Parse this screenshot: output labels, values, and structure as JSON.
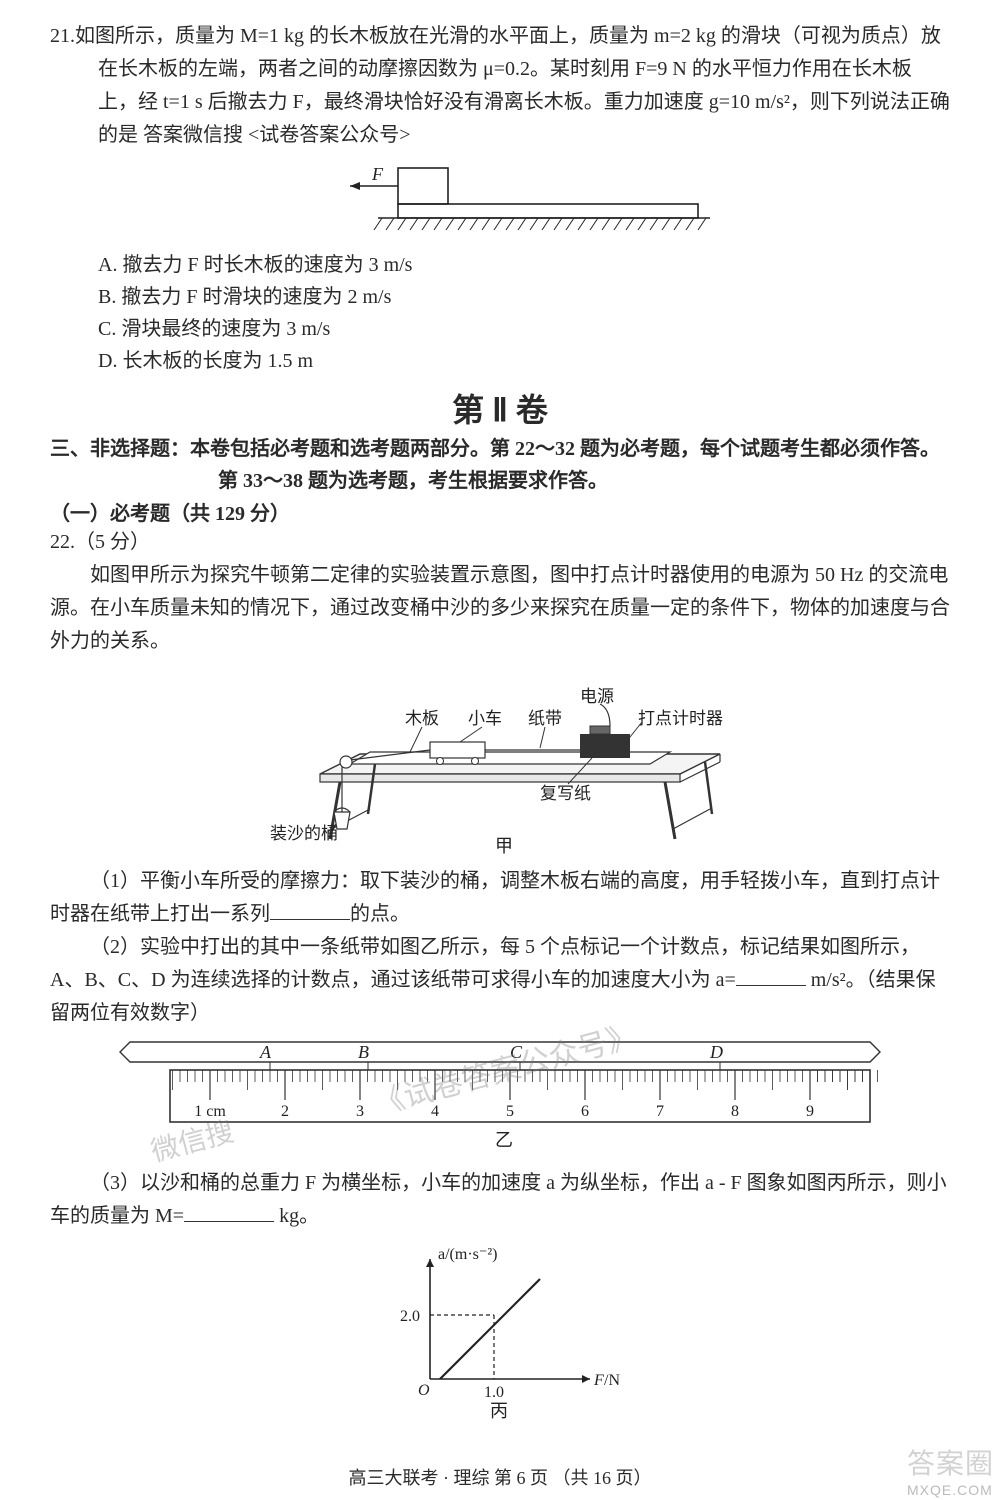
{
  "q21": {
    "num": "21.",
    "stem": "如图所示，质量为 M=1 kg 的长木板放在光滑的水平面上，质量为 m=2 kg 的滑块（可视为质点）放在长木板的左端，两者之间的动摩擦因数为 μ=0.2。某时刻用 F=9 N 的水平恒力作用在长木板上，经 t=1 s 后撤去力 F，最终滑块恰好没有滑离长木板。重力加速度 g=10 m/s²，则下列说法正确的是 答案微信搜 <试卷答案公众号>",
    "options": {
      "A": "A. 撤去力 F 时长木板的速度为 3 m/s",
      "B": "B. 撤去力 F 时滑块的速度为 2 m/s",
      "C": "C. 滑块最终的速度为 3 m/s",
      "D": "D. 长木板的长度为 1.5 m"
    },
    "diagram": {
      "force_label": "F",
      "block_w": 50,
      "block_h": 36,
      "board_w": 300,
      "board_h": 14,
      "ground_w": 340
    }
  },
  "part2": {
    "title": "第 Ⅱ 卷",
    "instr": "三、非选择题：本卷包括必考题和选考题两部分。第 22～32 题为必考题，每个试题考生都必须作答。第 33～38 题为选考题，考生根据要求作答。",
    "sub": "（一）必考题（共 129 分）"
  },
  "q22": {
    "head": "22.（5 分）",
    "p1": "如图甲所示为探究牛顿第二定律的实验装置示意图，图中打点计时器使用的电源为 50 Hz 的交流电源。在小车质量未知的情况下，通过改变桶中沙的多少来探究在质量一定的条件下，物体的加速度与合外力的关系。",
    "fig1_labels": {
      "board": "木板",
      "cart": "小车",
      "tape": "纸带",
      "power": "电源",
      "timer": "打点计时器",
      "carbon": "复写纸",
      "bucket": "装沙的桶",
      "cap": "甲"
    },
    "p2a": "（1）平衡小车所受的摩擦力：取下装沙的桶，调整木板右端的高度，用手轻拨小车，直到打点计时器在纸带上打出一系列",
    "p2b": "的点。",
    "p3a": "（2）实验中打出的其中一条纸带如图乙所示，每 5 个点标记一个计数点，标记结果如图所示，A、B、C、D 为连续选择的计数点，通过该纸带可求得小车的加速度大小为 a=",
    "p3b": " m/s²。（结果保留两位有效数字）",
    "ruler": {
      "labels": [
        "1 cm",
        "2",
        "3",
        "4",
        "5",
        "6",
        "7",
        "8",
        "9"
      ],
      "points": [
        "A",
        "B",
        "C",
        "D"
      ],
      "cap": "乙"
    },
    "p4a": "（3）以沙和桶的总重力 F 为横坐标，小车的加速度 a 为纵坐标，作出 a - F 图象如图丙所示，则小车的质量为 M=",
    "p4b": " kg。",
    "graph": {
      "ylab": "a/(m·s⁻²)",
      "xlab": "F/N",
      "ytick": "2.0",
      "xtick": "1.0",
      "origin": "O",
      "cap": "丙"
    }
  },
  "footer": "高三大联考 · 理综  第 6 页 （共 16 页）",
  "watermarks": {
    "w1": "微信搜",
    "w2": "《试卷答案公众号》"
  },
  "logo": {
    "t1": "答案圈",
    "t2": "MXQE.COM"
  }
}
